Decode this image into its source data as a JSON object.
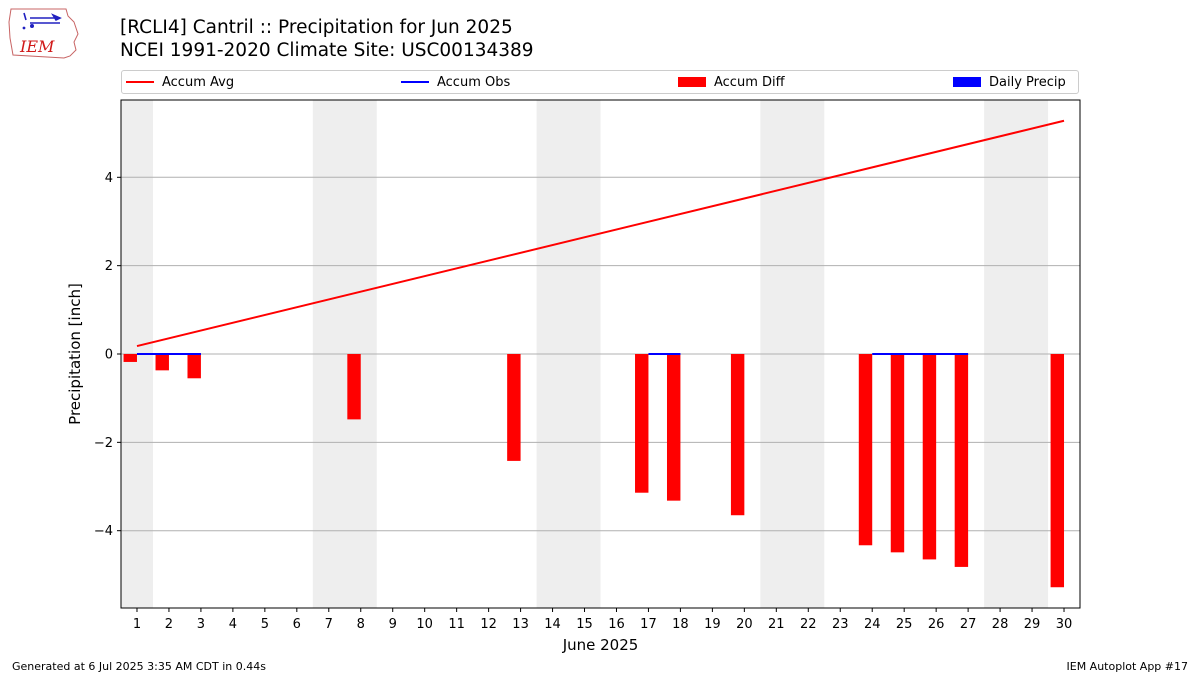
{
  "logo": {
    "text": "IEM"
  },
  "title": {
    "line1": "[RCLI4] Cantril :: Precipitation for Jun 2025",
    "line2": "NCEI 1991-2020 Climate Site: USC00134389"
  },
  "footer": {
    "left": "Generated at 6 Jul 2025 3:35 AM CDT in 0.44s",
    "right": "IEM Autoplot App #17"
  },
  "colors": {
    "accum_avg": "#ff0000",
    "accum_obs": "#0000ff",
    "accum_diff": "#ff0000",
    "daily_precip": "#0000ff",
    "weekend_band": "#eeeeee",
    "grid": "#b0b0b0"
  },
  "chart_data": {
    "type": "bar",
    "xlabel": "June 2025",
    "ylabel": "Precipitation [inch]",
    "xlim": [
      0.5,
      30.5
    ],
    "ylim": [
      -5.75,
      5.75
    ],
    "yticks": [
      -4,
      -2,
      0,
      2,
      4
    ],
    "grid": "y",
    "legend_position": "top",
    "legend": [
      "Accum Avg",
      "Accum Obs",
      "Accum Diff",
      "Daily Precip"
    ],
    "x": [
      1,
      2,
      3,
      4,
      5,
      6,
      7,
      8,
      9,
      10,
      11,
      12,
      13,
      14,
      15,
      16,
      17,
      18,
      19,
      20,
      21,
      22,
      23,
      24,
      25,
      26,
      27,
      28,
      29,
      30
    ],
    "weekend_bands": [
      [
        0.5,
        1.5
      ],
      [
        6.5,
        8.5
      ],
      [
        13.5,
        15.5
      ],
      [
        20.5,
        22.5
      ],
      [
        27.5,
        29.5
      ]
    ],
    "series": [
      {
        "name": "Accum Avg",
        "kind": "line",
        "x": [
          1,
          30
        ],
        "values": [
          0.18,
          5.28
        ]
      },
      {
        "name": "Accum Obs",
        "kind": "line",
        "segments": [
          {
            "x": [
              1,
              3
            ],
            "values": [
              0,
              0
            ]
          },
          {
            "x": [
              17,
              18
            ],
            "values": [
              0,
              0
            ]
          },
          {
            "x": [
              24,
              27
            ],
            "values": [
              0,
              0
            ]
          }
        ]
      },
      {
        "name": "Accum Diff",
        "kind": "bar",
        "x": [
          1,
          2,
          3,
          8,
          13,
          17,
          18,
          20,
          24,
          25,
          26,
          27,
          30
        ],
        "values": [
          -0.18,
          -0.37,
          -0.55,
          -1.48,
          -2.42,
          -3.14,
          -3.32,
          -3.65,
          -4.33,
          -4.49,
          -4.65,
          -4.82,
          -5.28
        ]
      },
      {
        "name": "Daily Precip",
        "kind": "bar",
        "x": [],
        "values": []
      }
    ]
  }
}
